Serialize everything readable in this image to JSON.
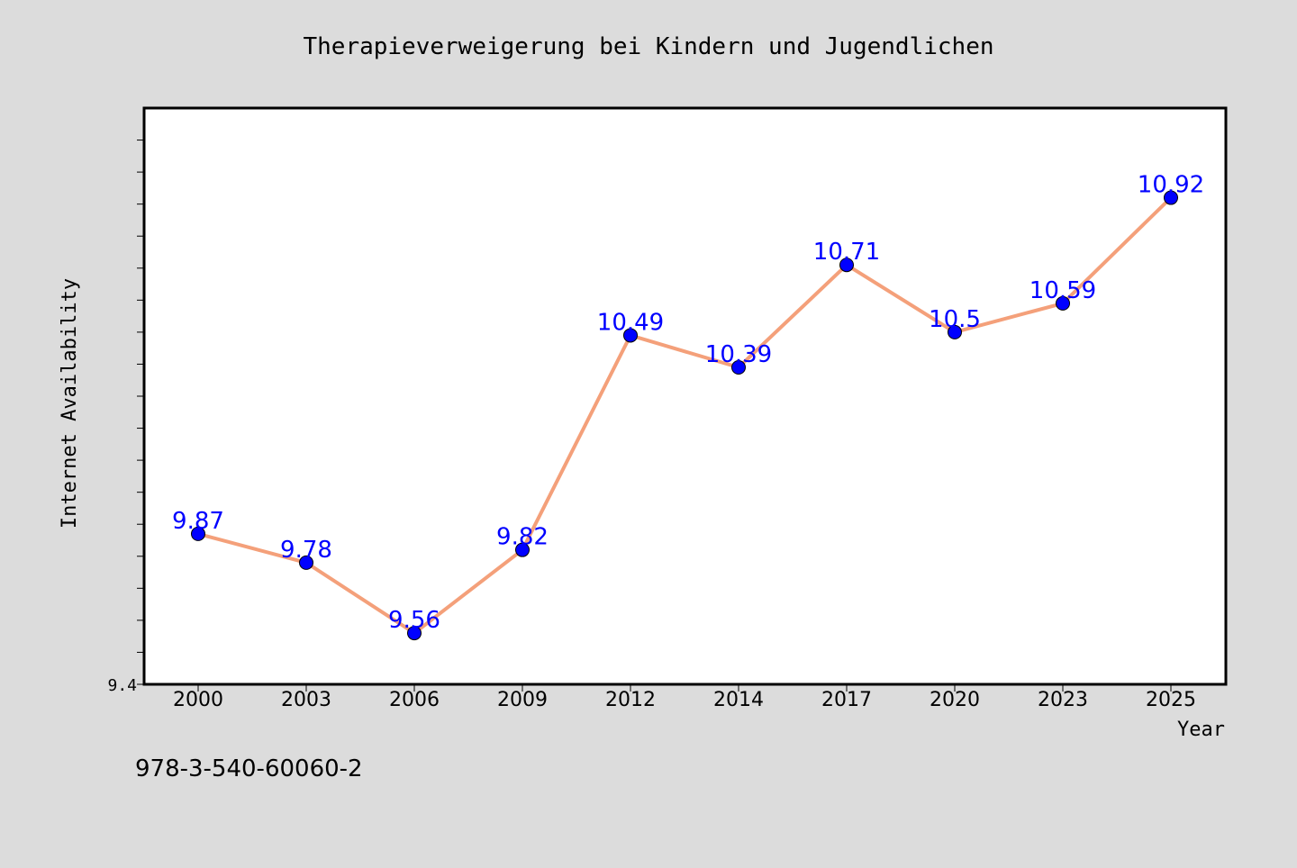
{
  "chart_data": {
    "type": "line",
    "title": "Therapieverweigerung bei Kindern und Jugendlichen",
    "xlabel": "Year",
    "ylabel": "Internet Availability",
    "categories": [
      "2000",
      "2003",
      "2006",
      "2009",
      "2012",
      "2014",
      "2017",
      "2020",
      "2023",
      "2025"
    ],
    "series": [
      {
        "values": [
          9.87,
          9.78,
          9.56,
          9.82,
          10.49,
          10.39,
          10.71,
          10.5,
          10.59,
          10.92
        ],
        "labels": [
          "9.87",
          "9.78",
          "9.56",
          "9.82",
          "10.49",
          "10.39",
          "10.71",
          "10.5",
          "10.59",
          "10.92"
        ],
        "line_color": "#f4a07a",
        "marker_color": "#0000ff"
      }
    ],
    "y_tick_labels": [
      "9.4"
    ],
    "ylim": [
      9.4,
      11.2
    ],
    "grid": false,
    "legend": "none",
    "background": "#dcdcdc",
    "plot_background": "#ffffff"
  },
  "footer_text": "978-3-540-60060-2"
}
